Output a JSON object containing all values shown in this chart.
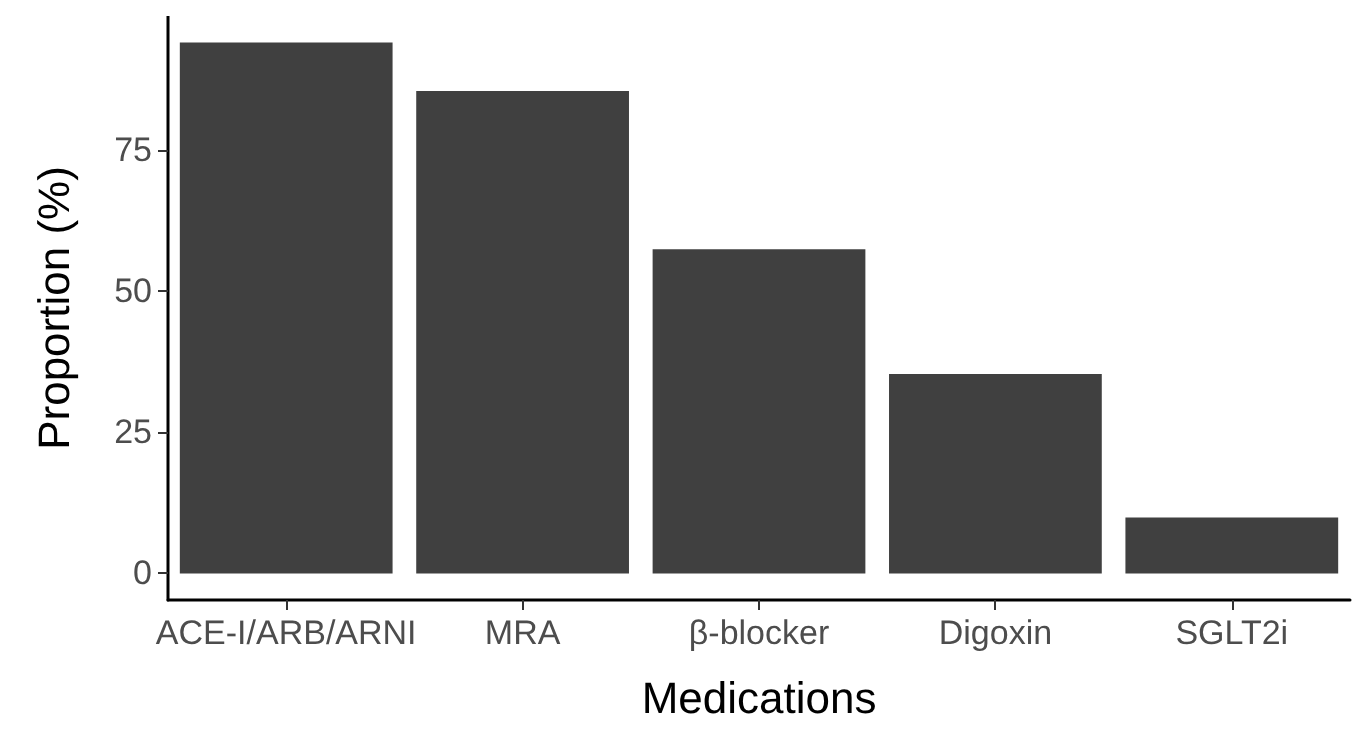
{
  "chart_data": {
    "type": "bar",
    "xlabel": "Medications",
    "ylabel": "Proportion (%)",
    "categories": [
      "ACE-I/ARB/ARNI",
      "MRA",
      "β-blocker",
      "Digoxin",
      "SGLT2i"
    ],
    "values": [
      94.0,
      85.4,
      57.4,
      35.3,
      9.9
    ],
    "color": "#404040",
    "ylim": [
      -4.7,
      98.7
    ],
    "yticks": [
      0,
      25,
      50,
      75
    ],
    "grid": false
  }
}
